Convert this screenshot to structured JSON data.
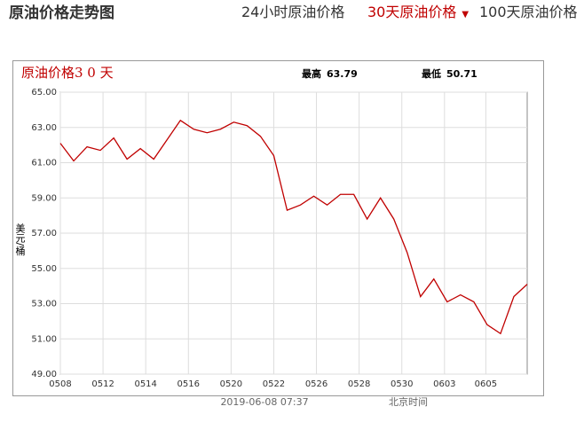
{
  "header": {
    "title": "原油价格走势图",
    "tabs": [
      "24小时原油价格",
      "30天原油价格",
      "100天原油价格"
    ]
  },
  "chart_data": {
    "type": "line",
    "title": "原油价格3 0 天",
    "high": {
      "label": "最高",
      "value": 63.79
    },
    "low": {
      "label": "最低",
      "value": 50.71
    },
    "y_label": "美元/桶",
    "x": [
      0,
      1,
      2,
      3,
      4,
      5,
      6,
      7,
      8,
      9,
      10,
      11,
      12,
      13,
      14,
      15,
      16,
      17,
      18,
      19,
      20,
      21,
      22,
      23,
      24,
      25,
      26,
      27,
      28,
      29,
      30,
      31,
      32,
      33,
      34,
      35
    ],
    "series": [
      {
        "name": "原油价格",
        "color": "#c00000",
        "values": [
          62.1,
          61.1,
          61.9,
          61.7,
          62.4,
          61.2,
          61.8,
          61.2,
          62.3,
          63.4,
          62.9,
          62.7,
          62.9,
          63.3,
          63.1,
          62.5,
          61.4,
          58.3,
          58.6,
          59.1,
          58.6,
          59.2,
          59.2,
          57.8,
          59.0,
          57.8,
          55.9,
          53.4,
          54.4,
          53.1,
          53.5,
          53.1,
          51.8,
          51.3,
          53.4,
          54.1
        ]
      }
    ],
    "xlim": [
      0,
      35
    ],
    "xticks": [
      {
        "value": 0,
        "label": "0508"
      },
      {
        "value": 3.2,
        "label": "0512"
      },
      {
        "value": 6.4,
        "label": "0514"
      },
      {
        "value": 9.6,
        "label": "0516"
      },
      {
        "value": 12.8,
        "label": "0520"
      },
      {
        "value": 16,
        "label": "0522"
      },
      {
        "value": 19.2,
        "label": "0526"
      },
      {
        "value": 22.4,
        "label": "0528"
      },
      {
        "value": 25.6,
        "label": "0530"
      },
      {
        "value": 28.8,
        "label": "0603"
      },
      {
        "value": 31.9,
        "label": "0605"
      }
    ],
    "ylim": [
      49,
      65
    ],
    "yticks": [
      {
        "value": 49,
        "label": "49.00"
      },
      {
        "value": 51,
        "label": "51.00"
      },
      {
        "value": 53,
        "label": "53.00"
      },
      {
        "value": 55,
        "label": "55.00"
      },
      {
        "value": 57,
        "label": "57.00"
      },
      {
        "value": 59,
        "label": "59.00"
      },
      {
        "value": 61,
        "label": "61.00"
      },
      {
        "value": 63,
        "label": "63.00"
      },
      {
        "value": 65,
        "label": "65.00"
      }
    ],
    "grid": true,
    "footer": {
      "time": "2019-06-08 07:37",
      "zone": "北京时间"
    }
  }
}
